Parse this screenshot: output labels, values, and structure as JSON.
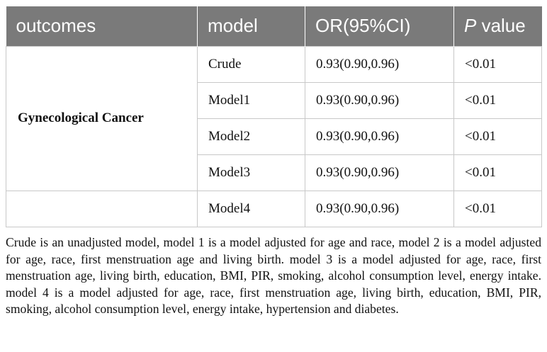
{
  "table": {
    "headers": {
      "outcomes": "outcomes",
      "model": "model",
      "or": "OR(95%CI)",
      "p_italic": "P",
      "p_rest": " value"
    },
    "group_label": "Gynecological Cancer",
    "rows": [
      {
        "model": "Crude",
        "or": "0.93(0.90,0.96)",
        "p": "<0.01"
      },
      {
        "model": "Model1",
        "or": "0.93(0.90,0.96)",
        "p": "<0.01"
      },
      {
        "model": "Model2",
        "or": "0.93(0.90,0.96)",
        "p": "<0.01"
      },
      {
        "model": "Model3",
        "or": "0.93(0.90,0.96)",
        "p": "<0.01"
      },
      {
        "model": "Model4",
        "or": "0.93(0.90,0.96)",
        "p": "<0.01"
      }
    ]
  },
  "footnote": "Crude is an unadjusted model, model 1 is a model adjusted for age and race, model 2 is a model adjusted for age, race, first menstruation age and living birth. model 3 is a model adjusted for age, race, first menstruation age, living birth, education, BMI, PIR, smoking, alcohol consumption level, energy intake. model 4 is a model adjusted for age, race, first menstruation age, living birth, education, BMI, PIR, smoking, alcohol consumption level, energy intake, hypertension and diabetes."
}
